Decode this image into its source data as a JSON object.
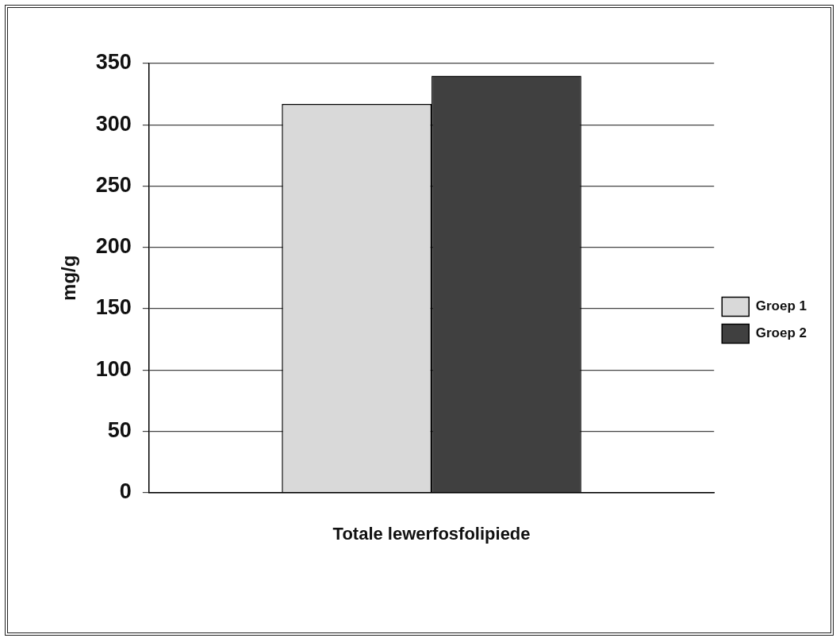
{
  "chart_data": {
    "type": "bar",
    "categories": [
      "Totale lewerfosfolipiede"
    ],
    "ylabel": "mg/g",
    "series": [
      {
        "name": "Groep 1",
        "color": "#d9d9d9",
        "values": [
          317
        ]
      },
      {
        "name": "Groep 2",
        "color": "#404040",
        "values": [
          340
        ]
      }
    ],
    "ylim": [
      0,
      350
    ],
    "yticks": [
      0,
      50,
      100,
      150,
      200,
      250,
      300,
      350
    ],
    "grid": "y",
    "legend": "right"
  }
}
